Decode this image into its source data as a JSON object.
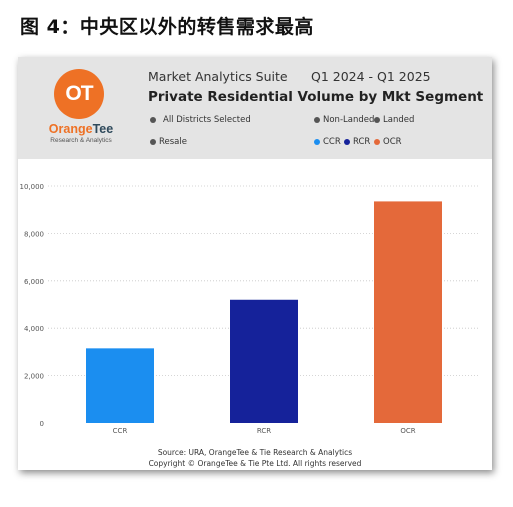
{
  "figure_title": "图 4：中央区以外的转售需求最高",
  "header": {
    "logo_text": "OT",
    "brand_name_1": "Orange",
    "brand_name_2": "Tee",
    "brand_sub": "Research & Analytics",
    "suite": "Market Analytics Suite",
    "period": "Q1 2024 - Q1 2025",
    "title": "Private Residential Volume by Mkt Segment",
    "filters": {
      "districts": "All Districts Selected",
      "non_landed": "Non-Landed",
      "landed": "Landed",
      "resale": "Resale"
    },
    "filter_dot_color": "#555555",
    "legend": [
      {
        "label": "CCR",
        "color": "#1b8ef0"
      },
      {
        "label": "RCR",
        "color": "#15229a"
      },
      {
        "label": "OCR",
        "color": "#e4693a"
      }
    ]
  },
  "chart_data": {
    "type": "bar",
    "categories": [
      "CCR",
      "RCR",
      "OCR"
    ],
    "values": [
      3150,
      5200,
      9350
    ],
    "colors": [
      "#1b8ef0",
      "#15229a",
      "#e4693a"
    ],
    "ylim": [
      0,
      10000
    ],
    "yticks": [
      "0",
      "2,000",
      "4,000",
      "6,000",
      "8,000",
      "10,000"
    ],
    "grid": true
  },
  "footer": {
    "source": "Source: URA, OrangeTee & Tie Research & Analytics",
    "copyright": "Copyright © OrangeTee & Tie Pte Ltd. All rights reserved"
  }
}
